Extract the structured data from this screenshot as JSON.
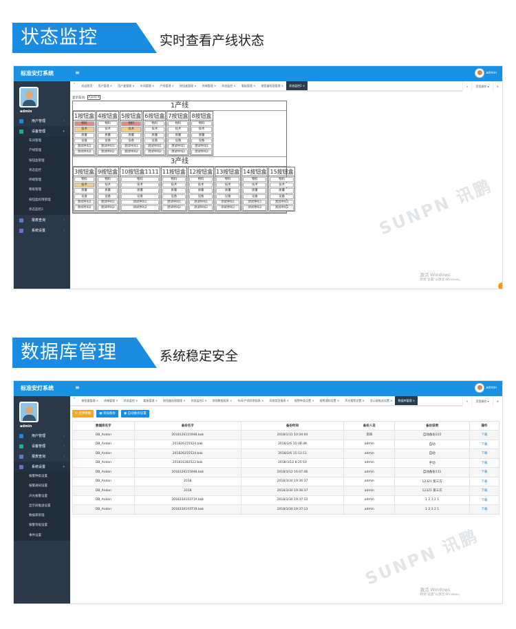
{
  "section1": {
    "banner": "状态监控",
    "subtitle": "实时查看产线状态"
  },
  "section2": {
    "banner": "数据库管理",
    "subtitle": "系统稳定安全"
  },
  "app": {
    "title": "标准安灯系统",
    "user": "admin",
    "menu_toggle": "≡"
  },
  "tab_controls": {
    "prev": "«",
    "next": "»",
    "page_ops": "页签操作 ▾",
    "close_all": "✕"
  },
  "watermark": {
    "windows_line1": "激活 Windows",
    "windows_line2": "转到\"设置\"以激活 Windows。",
    "logo": "SUNPN 讯鹏"
  },
  "colors": {
    "brand": "#1a92e4",
    "sidebar": "#2b3848",
    "alarm_red": "#e08a8a",
    "alarm_yellow": "#efcf8a",
    "restore": "#f5a623",
    "primary": "#1a8be0"
  },
  "screen1": {
    "sidebar": {
      "menu": [
        {
          "label": "用户管理",
          "icon": "user-icon",
          "color": "#1e88e5"
        },
        {
          "label": "设备管理",
          "icon": "wrench-icon",
          "color": "#17b28a",
          "open": true
        },
        {
          "label": "报表查询",
          "icon": "chart-icon",
          "color": "#5c7cc9"
        },
        {
          "label": "系统设置",
          "icon": "gear-icon",
          "color": "#6b6fd6"
        }
      ],
      "submenu": [
        "车间管理",
        "产线管理",
        "按钮盒管理",
        "状态监控",
        "终端管理",
        "看板管理",
        "按钮盒权限管理",
        "状态监控2"
      ]
    },
    "tabs": [
      "欢迎首页",
      "用户管理 ×",
      "用户盒管理 ×",
      "车间管理 ×",
      "产线管理 ×",
      "按钮盒管理 ×",
      "终端管理 ×",
      "状态监控 ×",
      "看板管理 ×",
      "按钮盒权限管理 ×",
      "状态监控2 ×"
    ],
    "active_tab": 10,
    "workshop_label": "显示车间:",
    "workshop_value": "A车间",
    "lines": [
      {
        "title": "1产线",
        "boxes": [
          {
            "name": "1按钮盒",
            "states": [
              "red",
              "yellow",
              "",
              "",
              "",
              ""
            ]
          },
          {
            "name": "4按钮盒",
            "states": [
              "",
              "",
              "",
              "",
              "",
              ""
            ]
          },
          {
            "name": "5按钮盒",
            "states": [
              "red",
              "yellow",
              "",
              "",
              "",
              ""
            ]
          },
          {
            "name": "6按钮盒",
            "states": [
              "",
              "",
              "",
              "",
              "",
              ""
            ]
          },
          {
            "name": "7按钮盒",
            "states": [
              "",
              "",
              "",
              "",
              "",
              ""
            ]
          },
          {
            "name": "8按钮盒",
            "states": [
              "",
              "",
              "",
              "",
              "",
              ""
            ]
          }
        ]
      },
      {
        "title": "3产线",
        "boxes": [
          {
            "name": "3按钮盒",
            "states": [
              "",
              "yellow",
              "",
              "",
              "",
              ""
            ]
          },
          {
            "name": "9按钮盒",
            "states": [
              "",
              "",
              "",
              "",
              "",
              ""
            ]
          },
          {
            "name": "10按钮盒1111",
            "states": [
              "",
              "",
              "",
              "",
              "",
              ""
            ]
          },
          {
            "name": "11按钮盒",
            "states": [
              "",
              "",
              "",
              "",
              "",
              ""
            ]
          },
          {
            "name": "12按钮盒",
            "states": [
              "",
              "",
              "",
              "",
              "",
              ""
            ]
          },
          {
            "name": "13按钮盒",
            "states": [
              "",
              "",
              "",
              "",
              "",
              ""
            ]
          },
          {
            "name": "14按钮盒",
            "states": [
              "",
              "",
              "",
              "",
              "",
              ""
            ]
          },
          {
            "name": "15按钮盒",
            "states": [
              "",
              "",
              "",
              "",
              "",
              ""
            ]
          }
        ]
      }
    ],
    "call_types": [
      "物料",
      "技术",
      "质量",
      "设备",
      "测试呼叫1",
      "测试呼叫2"
    ]
  },
  "screen2": {
    "sidebar": {
      "menu": [
        {
          "label": "用户管理",
          "icon": "user-icon",
          "color": "#1e88e5"
        },
        {
          "label": "设备管理",
          "icon": "wrench-icon",
          "color": "#17b28a"
        },
        {
          "label": "报表查询",
          "icon": "chart-icon",
          "color": "#5c7cc9"
        },
        {
          "label": "系统设置",
          "icon": "gear-icon",
          "color": "#6b6fd6",
          "open": true
        }
      ],
      "submenu": [
        "报警种类设置",
        "报警通知设置",
        "声光报警设置",
        "显示屏推送设置",
        "数据库管理",
        "报警等级设置",
        "事件设置"
      ]
    },
    "tabs": [
      "按钮盒管理 ×",
      "终端管理 ×",
      "状态监控 ×",
      "看板管理 ×",
      "按钮盒权限管理 ×",
      "状态监控2 ×",
      "常规数据报表 ×",
      "车间/产线异常报表 ×",
      "异常类型报表 ×",
      "报警种类设置 ×",
      "报警通知设置 ×",
      "声光报警设置 ×",
      "显示屏推送设置 ×",
      "数据库管理 ×"
    ],
    "active_tab": 13,
    "buttons": {
      "restore": "还原数据",
      "add": "添加备份",
      "auto": "自动备份设置"
    },
    "columns": [
      "数据库名字",
      "备份名字",
      "备份时间",
      "备份人员",
      "备份说明",
      "操作"
    ],
    "rows": [
      [
        "DB_Andon",
        "2018126115948.bak",
        "2018/1/31 10:34:04",
        "李四",
        "自动备份222",
        "下载"
      ],
      [
        "DB_Andon",
        "201826155524.bak",
        "2018/2/6 15:08:48",
        "admin",
        "自动",
        "下载"
      ],
      [
        "DB_Andon",
        "201826155524.bak",
        "2018/2/6 15:13:11",
        "admin",
        "自动",
        "下载"
      ],
      [
        "DB_Andon",
        "201831282522.bak",
        "2018/3/12 8:25:10",
        "admin",
        "手动",
        "下载"
      ],
      [
        "DB_Andon",
        "2018126115948.bak",
        "2018/3/12 16:07:46",
        "admin",
        "自动备份111",
        "下载"
      ],
      [
        "DB_Andon",
        "2018",
        "2018/3/30 19:36:37",
        "admin",
        "12321 第三方",
        "下载"
      ],
      [
        "DB_Andon",
        "2018",
        "2018/3/30 19:36:37",
        "admin",
        "12321 第三方",
        "下载"
      ],
      [
        "DB_Andon",
        "2018330193719.bak",
        "2018/3/30 19:37:13",
        "admin",
        "1 2 3 2 1",
        "下载"
      ],
      [
        "DB_Andon",
        "2018330193719.bak",
        "2018/3/30 19:37:13",
        "admin",
        "1 2 3 2 1",
        "下载"
      ]
    ]
  }
}
